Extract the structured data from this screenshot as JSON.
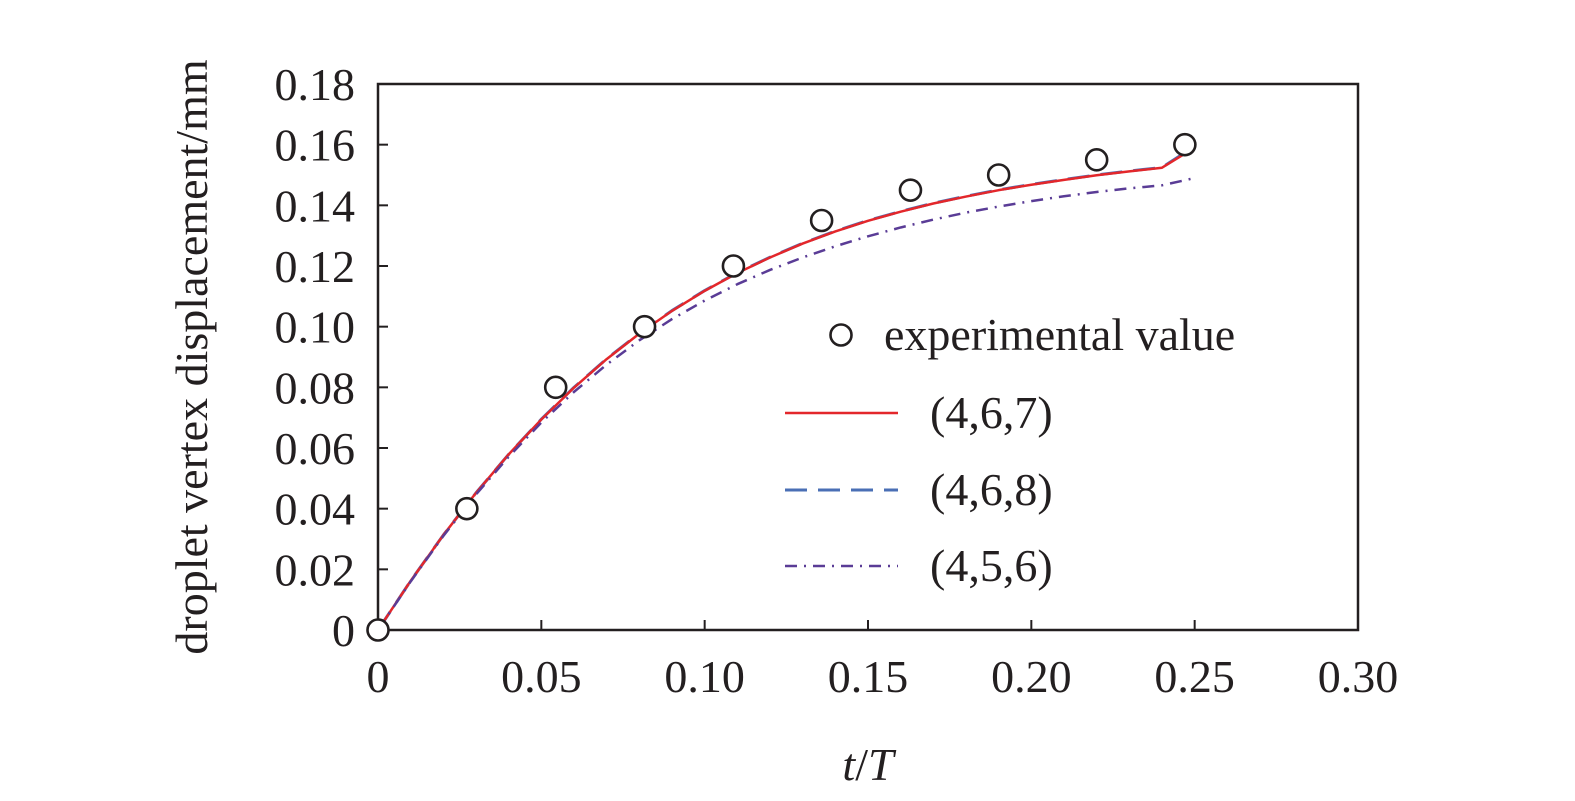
{
  "chart_data": {
    "type": "line",
    "title": "",
    "xlabel": {
      "var": "t",
      "sep": "/",
      "denom": "T"
    },
    "ylabel": "droplet vertex displacement/mm",
    "xlim": [
      0,
      0.3
    ],
    "ylim": [
      0,
      0.18
    ],
    "x_ticks": [
      0,
      0.05,
      0.1,
      0.15,
      0.2,
      0.25,
      0.3
    ],
    "x_tick_labels": [
      "0",
      "0.05",
      "0.10",
      "0.15",
      "0.20",
      "0.25",
      "0.30"
    ],
    "y_ticks": [
      0,
      0.02,
      0.04,
      0.06,
      0.08,
      0.1,
      0.12,
      0.14,
      0.16,
      0.18
    ],
    "y_tick_labels": [
      "0",
      "0.02",
      "0.04",
      "0.06",
      "0.08",
      "0.10",
      "0.12",
      "0.14",
      "0.16",
      "0.18"
    ],
    "grid": false,
    "legend_position": "right",
    "series": [
      {
        "name": "experimental value",
        "style": "marker",
        "marker": "open-circle",
        "color": "#231f20",
        "x": [
          0,
          0.0272,
          0.0544,
          0.0816,
          0.1088,
          0.1358,
          0.163,
          0.19,
          0.22,
          0.247
        ],
        "y": [
          0,
          0.04,
          0.08,
          0.1,
          0.12,
          0.135,
          0.145,
          0.15,
          0.155,
          0.16
        ]
      },
      {
        "name": "(4,6,8)",
        "style": "dashed",
        "color": "#4a6fb5",
        "x": [
          0,
          0.01,
          0.02,
          0.03,
          0.04,
          0.05,
          0.06,
          0.07,
          0.08,
          0.09,
          0.1,
          0.11,
          0.12,
          0.13,
          0.14,
          0.15,
          0.16,
          0.17,
          0.18,
          0.19,
          0.2,
          0.21,
          0.22,
          0.23,
          0.24,
          0.25
        ],
        "y": [
          0,
          0.0162,
          0.0313,
          0.0452,
          0.0579,
          0.0695,
          0.08,
          0.0894,
          0.0978,
          0.1053,
          0.1119,
          0.1178,
          0.1229,
          0.1275,
          0.1315,
          0.135,
          0.138,
          0.1407,
          0.143,
          0.1451,
          0.1469,
          0.1485,
          0.15,
          0.1513,
          0.1525,
          0.1595
        ]
      },
      {
        "name": "(4,6,7)",
        "style": "solid",
        "color": "#e3272b",
        "x": [
          0,
          0.01,
          0.02,
          0.03,
          0.04,
          0.05,
          0.06,
          0.07,
          0.08,
          0.09,
          0.1,
          0.11,
          0.12,
          0.13,
          0.14,
          0.15,
          0.16,
          0.17,
          0.18,
          0.19,
          0.2,
          0.21,
          0.22,
          0.23,
          0.24,
          0.25
        ],
        "y": [
          0,
          0.0162,
          0.0313,
          0.0452,
          0.0579,
          0.0694,
          0.0799,
          0.0893,
          0.0977,
          0.1052,
          0.1118,
          0.1177,
          0.1228,
          0.1274,
          0.1314,
          0.1349,
          0.1379,
          0.1406,
          0.1429,
          0.145,
          0.1468,
          0.1484,
          0.1499,
          0.1512,
          0.1524,
          0.159
        ]
      },
      {
        "name": "(4,5,6)",
        "style": "dash-dot",
        "color": "#5a3c96",
        "x": [
          0,
          0.01,
          0.02,
          0.03,
          0.04,
          0.05,
          0.06,
          0.07,
          0.08,
          0.09,
          0.1,
          0.11,
          0.12,
          0.13,
          0.14,
          0.15,
          0.16,
          0.17,
          0.18,
          0.19,
          0.2,
          0.21,
          0.22,
          0.23,
          0.24,
          0.25
        ],
        "y": [
          0,
          0.016,
          0.031,
          0.0447,
          0.0571,
          0.0684,
          0.0785,
          0.0875,
          0.0955,
          0.1025,
          0.1086,
          0.114,
          0.1187,
          0.1228,
          0.1265,
          0.1298,
          0.1327,
          0.1353,
          0.1376,
          0.1396,
          0.1414,
          0.143,
          0.1444,
          0.1456,
          0.1466,
          0.149
        ]
      }
    ],
    "legend_order": [
      "experimental value",
      "(4,6,7)",
      "(4,6,8)",
      "(4,5,6)"
    ]
  }
}
